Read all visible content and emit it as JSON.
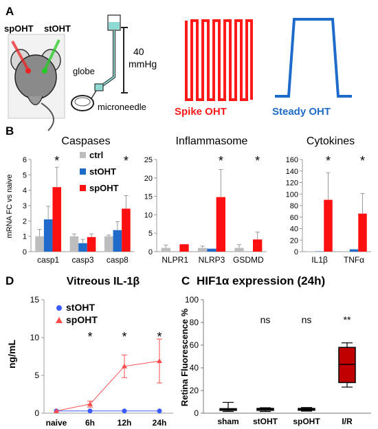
{
  "panel_labels": {
    "a": "A",
    "b": "B",
    "c": "C",
    "d": "D"
  },
  "panel_a": {
    "mouse_labels": [
      "spOHT",
      "stOHT"
    ],
    "setup_labels": {
      "pressure": "40",
      "unit": "mmHg",
      "globe": "globe",
      "needle": "microneedle"
    },
    "spike_label": "Spike OHT",
    "steady_label": "Steady OHT",
    "colors": {
      "spike": "#ff1a1a",
      "steady": "#1f6bc9"
    }
  },
  "colors": {
    "ctrl": "#bdbdbd",
    "stOHT": "#1f6bc9",
    "spOHT": "#ff1010",
    "ir_box": "#c00000"
  },
  "chart_data": [
    {
      "type": "bar",
      "title": "Caspases",
      "ylabel": "mRNA FC vs naive",
      "ylim": [
        0,
        6
      ],
      "yticks": [
        "0",
        "1",
        "2",
        "3",
        "4",
        "5",
        "6"
      ],
      "categories": [
        "casp1",
        "casp3",
        "casp8"
      ],
      "series": [
        {
          "name": "ctrl",
          "values": [
            1.0,
            1.0,
            1.0
          ],
          "errors": [
            0.45,
            0.15,
            0.08
          ]
        },
        {
          "name": "stOHT",
          "values": [
            2.1,
            0.55,
            1.4
          ],
          "errors": [
            0.85,
            0.25,
            0.55
          ]
        },
        {
          "name": "spOHT",
          "values": [
            4.2,
            0.95,
            2.8
          ],
          "errors": [
            1.3,
            0.2,
            0.85
          ]
        }
      ],
      "significance": [
        "*",
        "",
        "*"
      ],
      "legend": "top-right"
    },
    {
      "type": "bar",
      "title": "Inflammasome",
      "ylim": [
        0,
        25
      ],
      "yticks": [
        "0",
        "5",
        "10",
        "15",
        "20",
        "25"
      ],
      "categories": [
        "NLPR1",
        "NLRP3",
        "GSDMD"
      ],
      "series": [
        {
          "name": "ctrl",
          "values": [
            1.0,
            1.0,
            1.0
          ],
          "errors": [
            0.8,
            0.5,
            0.9
          ]
        },
        {
          "name": "stOHT",
          "values": [
            0,
            0.8,
            0
          ],
          "errors": [
            0,
            0,
            0
          ]
        },
        {
          "name": "spOHT",
          "values": [
            2.0,
            14.8,
            3.3
          ],
          "errors": [
            0,
            7.5,
            2.0
          ]
        }
      ],
      "significance": [
        "",
        "*",
        "*"
      ]
    },
    {
      "type": "bar",
      "title": "Cytokines",
      "ylim": [
        0,
        160
      ],
      "yticks": [
        "0",
        "20",
        "40",
        "60",
        "80",
        "100",
        "120",
        "140",
        "160"
      ],
      "categories": [
        "IL1β",
        "TNFα"
      ],
      "series": [
        {
          "name": "ctrl",
          "values": [
            0.5,
            0.8
          ],
          "errors": [
            0,
            0
          ]
        },
        {
          "name": "stOHT",
          "values": [
            0.5,
            4
          ],
          "errors": [
            0,
            0
          ]
        },
        {
          "name": "spOHT",
          "values": [
            90,
            66
          ],
          "errors": [
            47,
            35
          ]
        }
      ],
      "significance": [
        "*",
        "*"
      ]
    },
    {
      "type": "line",
      "title": "Vitreous IL-1β",
      "ylabel": "ng/mL",
      "ylim": [
        0,
        15
      ],
      "yticks": [
        "0",
        "5",
        "10",
        "15"
      ],
      "categories": [
        "naive",
        "6h",
        "12h",
        "24h"
      ],
      "series": [
        {
          "name": "stOHT",
          "values": [
            0.3,
            0.3,
            0.3,
            0.3
          ],
          "errors": [
            0,
            0,
            0,
            0
          ]
        },
        {
          "name": "spOHT",
          "values": [
            0.3,
            1.2,
            6.2,
            6.9
          ],
          "errors": [
            0,
            0.4,
            1.5,
            2.9
          ]
        }
      ],
      "significance": [
        "",
        "*",
        "*",
        "*"
      ],
      "legend": "top-left"
    },
    {
      "type": "box",
      "title": "HIF1α expression (24h)",
      "ylabel": "Retina Fluorescence %",
      "ylim": [
        0,
        100
      ],
      "yticks": [
        "0",
        "20",
        "40",
        "60",
        "80",
        "100"
      ],
      "categories": [
        "sham",
        "stOHT",
        "spOHT",
        "I/R"
      ],
      "boxes": [
        {
          "min": 1.5,
          "q1": 2.5,
          "median": 3.2,
          "q3": 4.0,
          "max": 9.5
        },
        {
          "min": 1.5,
          "q1": 2.5,
          "median": 3.5,
          "q3": 4.2,
          "max": 4.8
        },
        {
          "min": 1.8,
          "q1": 2.6,
          "median": 3.5,
          "q3": 4.2,
          "max": 5.0
        },
        {
          "min": 23,
          "q1": 27,
          "median": 43,
          "q3": 58,
          "max": 62
        }
      ],
      "significance": [
        "",
        "ns",
        "ns",
        "**"
      ]
    }
  ]
}
